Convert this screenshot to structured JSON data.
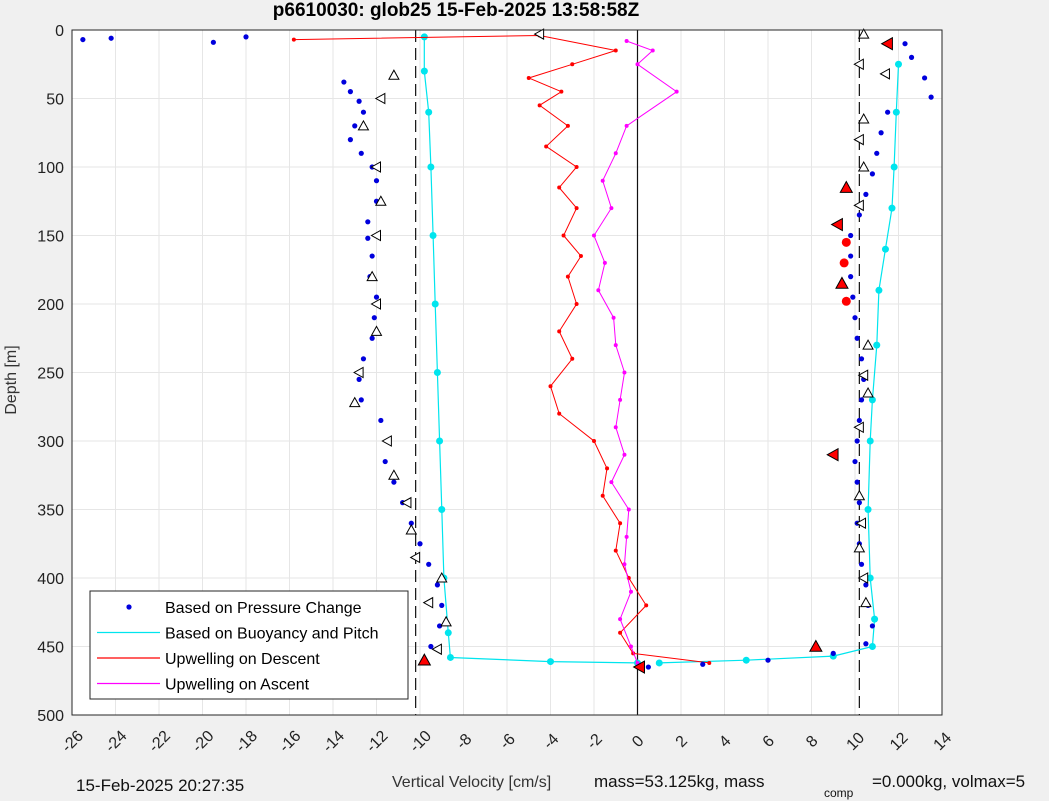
{
  "chart_data": {
    "type": "scatter",
    "title": "p6610030: glob25 15-Feb-2025 13:58:58Z",
    "xlabel": "Vertical Velocity [cm/s]",
    "ylabel": "Depth [m]",
    "xlim": [
      -26,
      14
    ],
    "ylim": [
      0,
      500
    ],
    "y_reversed": true,
    "grid": true,
    "legend_position": "bottom-left",
    "x_ticks": [
      "-26",
      "-24",
      "-22",
      "-20",
      "-18",
      "-16",
      "-14",
      "-12",
      "-10",
      "-8",
      "-6",
      "-4",
      "-2",
      "0",
      "2",
      "4",
      "6",
      "8",
      "10",
      "12",
      "14"
    ],
    "y_ticks": [
      "0",
      "50",
      "100",
      "150",
      "200",
      "250",
      "300",
      "350",
      "400",
      "450",
      "500"
    ],
    "reference_lines": {
      "dashed_x": [
        -10.2,
        10.2
      ],
      "solid_x": [
        0
      ]
    },
    "colors": {
      "pressure": "#0000dd",
      "buoyancy": "#00e5ee",
      "descent": "#ff0000",
      "ascent": "#ff00ff"
    },
    "series": [
      {
        "name": "Based on Pressure Change",
        "style": "dots",
        "descent": [
          [
            -25.5,
            7
          ],
          [
            -24.2,
            6
          ],
          [
            -19.5,
            9
          ],
          [
            -18,
            5
          ],
          [
            -13.5,
            38
          ],
          [
            -13.2,
            45
          ],
          [
            -12.8,
            52
          ],
          [
            -12.6,
            60
          ],
          [
            -13,
            70
          ],
          [
            -13.2,
            80
          ],
          [
            -12.7,
            90
          ],
          [
            -12.2,
            100
          ],
          [
            -12,
            110
          ],
          [
            -12,
            125
          ],
          [
            -12.4,
            140
          ],
          [
            -12.4,
            152
          ],
          [
            -12.2,
            165
          ],
          [
            -12.3,
            180
          ],
          [
            -12,
            195
          ],
          [
            -12.1,
            210
          ],
          [
            -12.2,
            225
          ],
          [
            -12.6,
            240
          ],
          [
            -12.8,
            255
          ],
          [
            -12.7,
            270
          ],
          [
            -11.8,
            285
          ],
          [
            -11.5,
            300
          ],
          [
            -11.6,
            315
          ],
          [
            -11.2,
            330
          ],
          [
            -10.8,
            345
          ],
          [
            -10.4,
            360
          ],
          [
            -10,
            375
          ],
          [
            -9.6,
            390
          ],
          [
            -9.2,
            405
          ],
          [
            -9,
            420
          ],
          [
            -9.1,
            435
          ],
          [
            -9.5,
            450
          ],
          [
            -9.8,
            460
          ]
        ],
        "ascent": [
          [
            12.3,
            10
          ],
          [
            12.6,
            20
          ],
          [
            13.2,
            35
          ],
          [
            13.5,
            49
          ],
          [
            11.5,
            60
          ],
          [
            11.2,
            75
          ],
          [
            11,
            90
          ],
          [
            10.8,
            105
          ],
          [
            10.5,
            120
          ],
          [
            10.2,
            135
          ],
          [
            9.8,
            150
          ],
          [
            9.8,
            165
          ],
          [
            9.8,
            180
          ],
          [
            9.9,
            195
          ],
          [
            10,
            210
          ],
          [
            10.1,
            225
          ],
          [
            10.3,
            240
          ],
          [
            10.4,
            255
          ],
          [
            10.3,
            270
          ],
          [
            10.2,
            285
          ],
          [
            10.1,
            300
          ],
          [
            10,
            315
          ],
          [
            10.1,
            330
          ],
          [
            10.2,
            345
          ],
          [
            10.1,
            360
          ],
          [
            10.2,
            375
          ],
          [
            10.3,
            390
          ],
          [
            10.5,
            405
          ],
          [
            10.6,
            420
          ],
          [
            10.8,
            435
          ],
          [
            10.5,
            448
          ],
          [
            9,
            455
          ],
          [
            6,
            460
          ],
          [
            3,
            463
          ],
          [
            0.5,
            465
          ]
        ]
      },
      {
        "name": "Based on Buoyancy and Pitch",
        "style": "line",
        "descent": [
          [
            -9.8,
            5
          ],
          [
            -9.8,
            30
          ],
          [
            -9.6,
            60
          ],
          [
            -9.5,
            100
          ],
          [
            -9.4,
            150
          ],
          [
            -9.3,
            200
          ],
          [
            -9.2,
            250
          ],
          [
            -9.1,
            300
          ],
          [
            -9.0,
            350
          ],
          [
            -8.9,
            400
          ],
          [
            -8.7,
            440
          ],
          [
            -8.6,
            458
          ],
          [
            -4,
            461
          ],
          [
            0,
            462
          ]
        ],
        "ascent": [
          [
            12,
            25
          ],
          [
            11.9,
            60
          ],
          [
            11.8,
            100
          ],
          [
            11.7,
            130
          ],
          [
            11.4,
            160
          ],
          [
            11.1,
            190
          ],
          [
            11,
            230
          ],
          [
            10.8,
            270
          ],
          [
            10.7,
            300
          ],
          [
            10.6,
            350
          ],
          [
            10.7,
            400
          ],
          [
            10.9,
            430
          ],
          [
            10.8,
            450
          ],
          [
            9,
            457
          ],
          [
            5,
            460
          ],
          [
            1,
            462
          ]
        ]
      },
      {
        "name": "Upwelling on Descent",
        "style": "line-markers",
        "points": [
          [
            -15.8,
            7
          ],
          [
            -4.5,
            4
          ],
          [
            -1,
            15
          ],
          [
            -3,
            25
          ],
          [
            -5,
            35
          ],
          [
            -3.5,
            45
          ],
          [
            -4.5,
            55
          ],
          [
            -3.2,
            70
          ],
          [
            -4.2,
            85
          ],
          [
            -2.8,
            100
          ],
          [
            -3.6,
            115
          ],
          [
            -2.8,
            130
          ],
          [
            -3.4,
            150
          ],
          [
            -2.6,
            165
          ],
          [
            -3.2,
            180
          ],
          [
            -2.8,
            200
          ],
          [
            -3.6,
            220
          ],
          [
            -3,
            240
          ],
          [
            -4,
            260
          ],
          [
            -3.6,
            280
          ],
          [
            -2,
            300
          ],
          [
            -1.4,
            320
          ],
          [
            -1.6,
            340
          ],
          [
            -0.8,
            360
          ],
          [
            -1,
            380
          ],
          [
            -0.4,
            400
          ],
          [
            0.4,
            420
          ],
          [
            -0.8,
            440
          ],
          [
            -0.2,
            455
          ],
          [
            3.3,
            462
          ]
        ]
      },
      {
        "name": "Upwelling on Ascent",
        "style": "line-markers",
        "points": [
          [
            -0.5,
            8
          ],
          [
            0.7,
            15
          ],
          [
            0,
            25
          ],
          [
            1.8,
            45
          ],
          [
            -0.5,
            70
          ],
          [
            -1,
            90
          ],
          [
            -1.6,
            110
          ],
          [
            -1.2,
            130
          ],
          [
            -2,
            150
          ],
          [
            -1.5,
            170
          ],
          [
            -1.8,
            190
          ],
          [
            -1.1,
            210
          ],
          [
            -1,
            230
          ],
          [
            -0.6,
            250
          ],
          [
            -0.8,
            270
          ],
          [
            -1,
            290
          ],
          [
            -0.6,
            310
          ],
          [
            -1.2,
            330
          ],
          [
            -0.4,
            350
          ],
          [
            -0.5,
            370
          ],
          [
            -0.6,
            390
          ],
          [
            -0.3,
            410
          ],
          [
            -0.8,
            430
          ],
          [
            -0.3,
            450
          ],
          [
            0,
            462
          ]
        ]
      }
    ],
    "markers": {
      "white_triangles": [
        [
          -4.5,
          3
        ],
        [
          -11.2,
          33
        ],
        [
          -11.8,
          50
        ],
        [
          -12.6,
          70
        ],
        [
          -12.0,
          100
        ],
        [
          -11.8,
          125
        ],
        [
          -12.0,
          150
        ],
        [
          -12.2,
          180
        ],
        [
          -12.0,
          200
        ],
        [
          -12.0,
          220
        ],
        [
          -12.8,
          250
        ],
        [
          -13.0,
          272
        ],
        [
          -11.5,
          300
        ],
        [
          -11.2,
          325
        ],
        [
          -10.6,
          345
        ],
        [
          -10.4,
          365
        ],
        [
          -10.2,
          385
        ],
        [
          -9.0,
          400
        ],
        [
          -9.6,
          418
        ],
        [
          -8.8,
          432
        ],
        [
          -9.2,
          452
        ],
        [
          10.4,
          3
        ],
        [
          10.2,
          25
        ],
        [
          10.4,
          65
        ],
        [
          10.2,
          80
        ],
        [
          10.4,
          100
        ],
        [
          10.2,
          128
        ],
        [
          10.6,
          230
        ],
        [
          10.4,
          252
        ],
        [
          10.6,
          265
        ],
        [
          10.2,
          290
        ],
        [
          10.2,
          340
        ],
        [
          10.3,
          360
        ],
        [
          10.2,
          378
        ],
        [
          10.4,
          400
        ],
        [
          10.5,
          418
        ],
        [
          11.4,
          32
        ]
      ],
      "red_triangles": [
        [
          -9.8,
          460
        ],
        [
          11.5,
          10
        ],
        [
          9.6,
          115
        ],
        [
          9.2,
          142
        ],
        [
          9.4,
          185
        ],
        [
          9.0,
          310
        ],
        [
          8.2,
          450
        ],
        [
          0.1,
          465
        ]
      ],
      "red_dots": [
        [
          9.6,
          155
        ],
        [
          9.5,
          170
        ],
        [
          9.6,
          198
        ]
      ]
    }
  },
  "footer": {
    "timestamp": "15-Feb-2025 20:27:35",
    "xlabel_text": "Vertical Velocity [cm/s]",
    "mass_text": "mass=53.125kg, mass",
    "comp_sub": "comp",
    "volmax_text": "=0.000kg, volmax=5"
  }
}
